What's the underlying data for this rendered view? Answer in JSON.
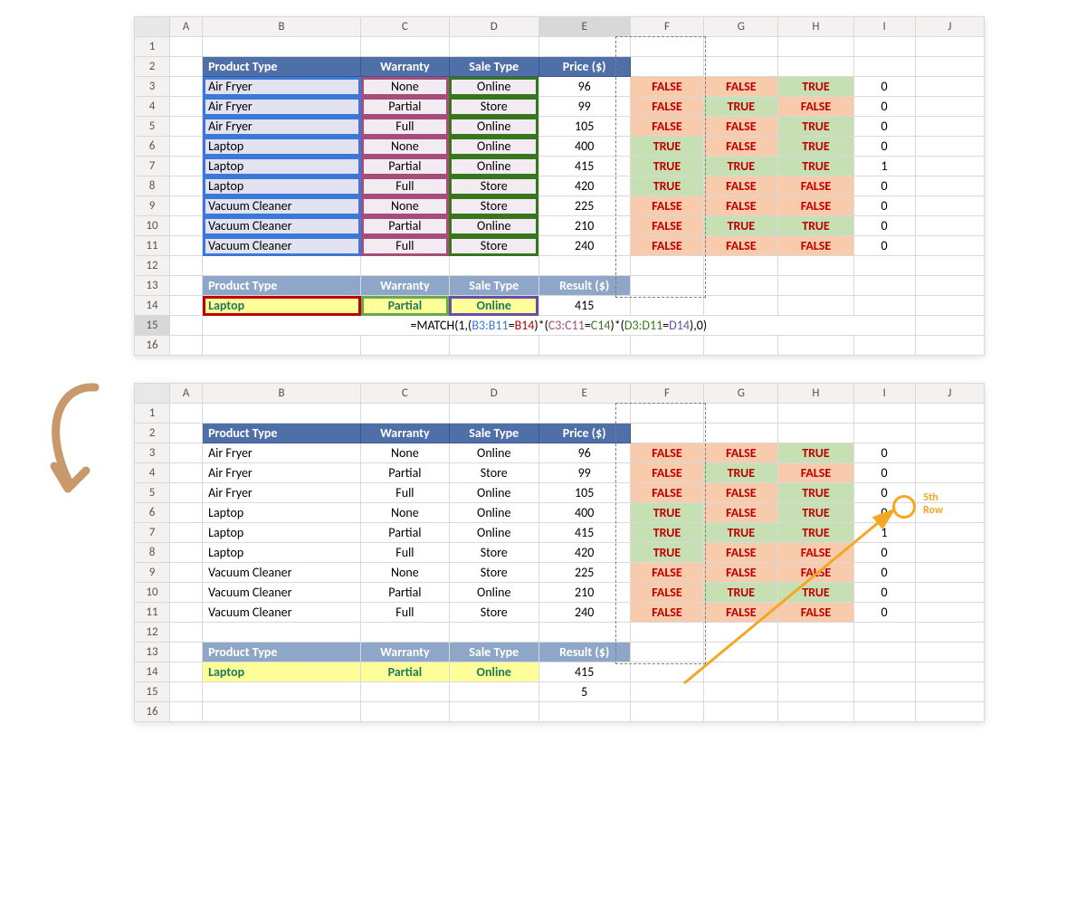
{
  "columns": [
    "A",
    "B",
    "C",
    "D",
    "E",
    "F",
    "G",
    "H",
    "I",
    "J"
  ],
  "rows": [
    "1",
    "2",
    "3",
    "4",
    "5",
    "6",
    "7",
    "8",
    "9",
    "10",
    "11",
    "12",
    "13",
    "14",
    "15",
    "16"
  ],
  "header": {
    "product": "Product Type",
    "warranty": "Warranty",
    "sale": "Sale Type",
    "price": "Price ($)",
    "result": "Result ($)"
  },
  "data": [
    {
      "p": "Air Fryer",
      "w": "None",
      "s": "Online",
      "price": "96",
      "f": "FALSE",
      "g": "FALSE",
      "h": "TRUE",
      "i": "0"
    },
    {
      "p": "Air Fryer",
      "w": "Partial",
      "s": "Store",
      "price": "99",
      "f": "FALSE",
      "g": "TRUE",
      "h": "FALSE",
      "i": "0"
    },
    {
      "p": "Air Fryer",
      "w": "Full",
      "s": "Online",
      "price": "105",
      "f": "FALSE",
      "g": "FALSE",
      "h": "TRUE",
      "i": "0"
    },
    {
      "p": "Laptop",
      "w": "None",
      "s": "Online",
      "price": "400",
      "f": "TRUE",
      "g": "FALSE",
      "h": "TRUE",
      "i": "0"
    },
    {
      "p": "Laptop",
      "w": "Partial",
      "s": "Online",
      "price": "415",
      "f": "TRUE",
      "g": "TRUE",
      "h": "TRUE",
      "i": "1"
    },
    {
      "p": "Laptop",
      "w": "Full",
      "s": "Store",
      "price": "420",
      "f": "TRUE",
      "g": "FALSE",
      "h": "FALSE",
      "i": "0"
    },
    {
      "p": "Vacuum Cleaner",
      "w": "None",
      "s": "Store",
      "price": "225",
      "f": "FALSE",
      "g": "FALSE",
      "h": "FALSE",
      "i": "0"
    },
    {
      "p": "Vacuum Cleaner",
      "w": "Partial",
      "s": "Online",
      "price": "210",
      "f": "FALSE",
      "g": "TRUE",
      "h": "TRUE",
      "i": "0"
    },
    {
      "p": "Vacuum Cleaner",
      "w": "Full",
      "s": "Store",
      "price": "240",
      "f": "FALSE",
      "g": "FALSE",
      "h": "FALSE",
      "i": "0"
    }
  ],
  "lookup": {
    "p": "Laptop",
    "w": "Partial",
    "s": "Online",
    "result_top": "415",
    "result_bottom": "415",
    "final": "5"
  },
  "formula": {
    "pre": "=MATCH(1,(",
    "b": "B3:B11",
    "eq": "=",
    "b14": "B14",
    "mul": ")*(",
    "c": "C3:C11",
    "c14": "C14",
    "d": "D3:D11",
    "d14": "D14",
    "post": "),0)"
  },
  "annotation": {
    "line1": "5th",
    "line2": "Row"
  },
  "colors": {
    "header_bg": "#4f6fa8",
    "lavender": "#e2e2f0",
    "pinkcol": "#f3ebf2",
    "midblue": "#8ea6c8",
    "yellow": "#ffff99",
    "true_bg": "#c6e0b4",
    "false_bg": "#f8cbad",
    "bool_text": "#c00000",
    "annot": "#f5a623",
    "arrow": "#c8996b"
  }
}
